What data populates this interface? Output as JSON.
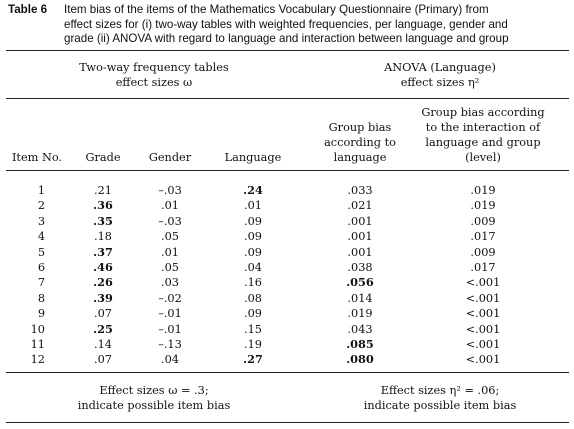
{
  "caption": {
    "label": "Table 6",
    "lines": [
      "Item bias of the items of the Mathematics Vocabulary Questionnaire (Primary) from",
      "effect sizes for (i) two-way tables with weighted frequencies, per language, gender and",
      "grade (ii) ANOVA with regard to language and interaction between language and group"
    ]
  },
  "header": {
    "group_left": [
      "Two-way frequency tables",
      "effect sizes ω"
    ],
    "group_right": [
      "ANOVA (Language)",
      "effect sizes η²"
    ],
    "columns": [
      [
        "Item No."
      ],
      [
        "Grade"
      ],
      [
        "Gender"
      ],
      [
        "Language"
      ],
      [
        "Group bias",
        "according to",
        "language"
      ],
      [
        "Group bias according",
        "to the interaction of",
        "language and group",
        "(level)"
      ]
    ]
  },
  "rows": [
    {
      "item": "1",
      "grade": ".21",
      "gender": "–.03",
      "language": ".24",
      "group_bias_language": ".033",
      "group_bias_interaction": ".019",
      "bold": [
        "language"
      ]
    },
    {
      "item": "2",
      "grade": ".36",
      "gender": ".01",
      "language": ".01",
      "group_bias_language": ".021",
      "group_bias_interaction": ".019",
      "bold": [
        "grade"
      ]
    },
    {
      "item": "3",
      "grade": ".35",
      "gender": "–.03",
      "language": ".09",
      "group_bias_language": ".001",
      "group_bias_interaction": ".009",
      "bold": [
        "grade"
      ]
    },
    {
      "item": "4",
      "grade": ".18",
      "gender": ".05",
      "language": ".09",
      "group_bias_language": ".001",
      "group_bias_interaction": ".017",
      "bold": []
    },
    {
      "item": "5",
      "grade": ".37",
      "gender": ".01",
      "language": ".09",
      "group_bias_language": ".001",
      "group_bias_interaction": ".009",
      "bold": [
        "grade"
      ]
    },
    {
      "item": "6",
      "grade": ".46",
      "gender": ".05",
      "language": ".04",
      "group_bias_language": ".038",
      "group_bias_interaction": ".017",
      "bold": [
        "grade"
      ]
    },
    {
      "item": "7",
      "grade": ".26",
      "gender": ".03",
      "language": ".16",
      "group_bias_language": ".056",
      "group_bias_interaction": "<.001",
      "bold": [
        "grade",
        "group_bias_language"
      ]
    },
    {
      "item": "8",
      "grade": ".39",
      "gender": "–.02",
      "language": ".08",
      "group_bias_language": ".014",
      "group_bias_interaction": "<.001",
      "bold": [
        "grade"
      ]
    },
    {
      "item": "9",
      "grade": ".07",
      "gender": "–.01",
      "language": ".09",
      "group_bias_language": ".019",
      "group_bias_interaction": "<.001",
      "bold": []
    },
    {
      "item": "10",
      "grade": ".25",
      "gender": "–.01",
      "language": ".15",
      "group_bias_language": ".043",
      "group_bias_interaction": "<.001",
      "bold": [
        "grade"
      ]
    },
    {
      "item": "11",
      "grade": ".14",
      "gender": "–.13",
      "language": ".19",
      "group_bias_language": ".085",
      "group_bias_interaction": "<.001",
      "bold": [
        "group_bias_language"
      ]
    },
    {
      "item": "12",
      "grade": ".07",
      "gender": ".04",
      "language": ".27",
      "group_bias_language": ".080",
      "group_bias_interaction": "<.001",
      "bold": [
        "language",
        "group_bias_language"
      ]
    }
  ],
  "footnotes": {
    "left": [
      "Effect sizes ω = .3;",
      "indicate possible item bias"
    ],
    "right": [
      "Effect sizes η² = .06;",
      "indicate possible item bias"
    ]
  }
}
